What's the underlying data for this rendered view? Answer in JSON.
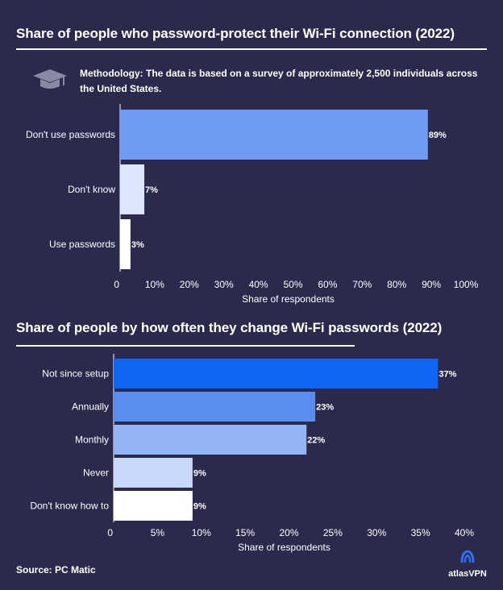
{
  "chart_data": [
    {
      "type": "bar",
      "orientation": "horizontal",
      "title": "Share of people who password-protect their Wi-Fi connection (2022)",
      "categories": [
        "Don't use passwords",
        "Don't know",
        "Use passwords"
      ],
      "values": [
        89,
        7,
        3
      ],
      "value_labels": [
        "89%",
        "7%",
        "3%"
      ],
      "colors": [
        "#6f9cf2",
        "#dde6fb",
        "#ffffff"
      ],
      "xlim": [
        0,
        100
      ],
      "xticks": [
        "0",
        "10%",
        "20%",
        "30%",
        "40%",
        "50%",
        "60%",
        "70%",
        "80%",
        "90%",
        "100%"
      ],
      "xlabel": "Share of respondents",
      "ylabel": "",
      "grid": false
    },
    {
      "type": "bar",
      "orientation": "horizontal",
      "title": "Share of people by how often they change Wi-Fi passwords (2022)",
      "categories": [
        "Not since setup",
        "Annually",
        "Monthly",
        "Never",
        "Don't know how to"
      ],
      "values": [
        37,
        23,
        22,
        9,
        9
      ],
      "value_labels": [
        "37%",
        "23%",
        "22%",
        "9%",
        "9%"
      ],
      "colors": [
        "#0f66f5",
        "#5b8cef",
        "#93b4f5",
        "#c9d9fb",
        "#ffffff"
      ],
      "xlim": [
        0,
        40
      ],
      "xticks": [
        "0",
        "5%",
        "10%",
        "15%",
        "20%",
        "25%",
        "30%",
        "35%",
        "40%"
      ],
      "xlabel": "Share of respondents",
      "ylabel": "",
      "grid": false
    }
  ],
  "methodology": "Methodology: The data is based on a survey of approximately 2,500 individuals across the United States.",
  "source": "Source: PC Matic",
  "brand": {
    "name": "atlasVPN",
    "icon": "atlasvpn-logo-icon"
  },
  "icons": {
    "methodology": "graduation-cap-icon"
  },
  "colors": {
    "background": "#2b2a4c",
    "text": "#ffffff"
  }
}
